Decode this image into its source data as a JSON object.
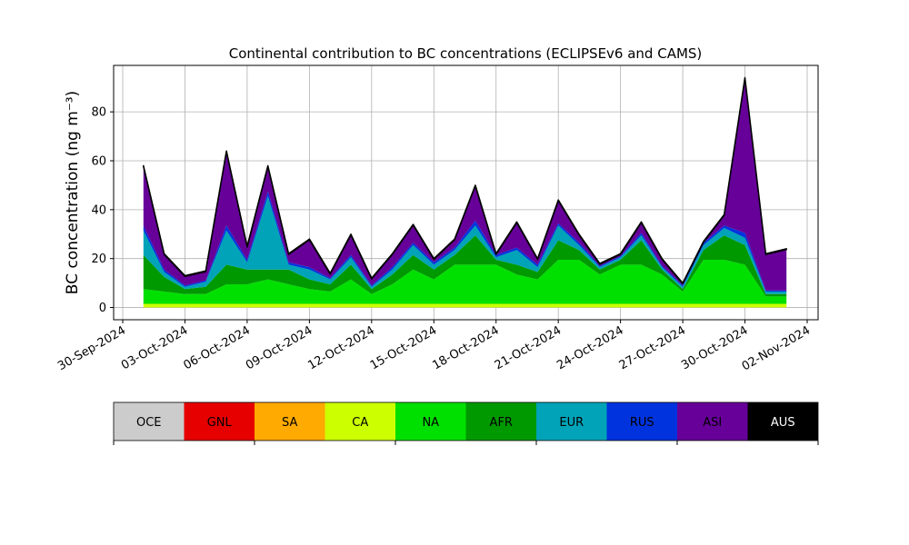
{
  "chart_data": {
    "type": "stacked_area",
    "title": "Continental contribution to BC concentrations (ECLIPSEv6 and CAMS)",
    "y_label": "BC concentration (ng m⁻³)",
    "x": [
      "2024-10-01",
      "2024-10-02",
      "2024-10-03",
      "2024-10-04",
      "2024-10-05",
      "2024-10-06",
      "2024-10-07",
      "2024-10-08",
      "2024-10-09",
      "2024-10-10",
      "2024-10-11",
      "2024-10-12",
      "2024-10-13",
      "2024-10-14",
      "2024-10-15",
      "2024-10-16",
      "2024-10-17",
      "2024-10-18",
      "2024-10-19",
      "2024-10-20",
      "2024-10-21",
      "2024-10-22",
      "2024-10-23",
      "2024-10-24",
      "2024-10-25",
      "2024-10-26",
      "2024-10-27",
      "2024-10-28",
      "2024-10-29",
      "2024-10-30",
      "2024-10-31",
      "2024-11-01"
    ],
    "series": [
      {
        "name": "OCE",
        "color": "#cccccc",
        "values": [
          0,
          0,
          0,
          0,
          0,
          0,
          0,
          0,
          0,
          0,
          0,
          0,
          0,
          0,
          0,
          0,
          0,
          0,
          0,
          0,
          0,
          0,
          0,
          0,
          0,
          0,
          0,
          0,
          0,
          0,
          0,
          0
        ]
      },
      {
        "name": "GNL",
        "color": "#e60000",
        "values": [
          0,
          0,
          0,
          0,
          0,
          0,
          0,
          0,
          0,
          0,
          0,
          0,
          0,
          0,
          0,
          0,
          0,
          0,
          0,
          0,
          0,
          0,
          0,
          0,
          0,
          0,
          0,
          0,
          0,
          0,
          0,
          0
        ]
      },
      {
        "name": "SA",
        "color": "#ffaa00",
        "values": [
          0,
          0,
          0,
          0,
          0,
          0,
          0,
          0,
          0,
          0,
          0,
          0,
          0,
          0,
          0,
          0,
          0,
          0,
          0,
          0,
          0,
          0,
          0,
          0,
          0,
          0,
          0,
          0,
          0,
          0,
          0,
          0
        ]
      },
      {
        "name": "CA",
        "color": "#ccff00",
        "values": [
          1.5,
          1.5,
          1.5,
          1.5,
          1.5,
          1.5,
          1.5,
          1.5,
          1.5,
          1.5,
          1.5,
          1.5,
          1.5,
          1.5,
          1.5,
          1.5,
          1.5,
          1.5,
          1.5,
          1.5,
          1.5,
          1.5,
          1.5,
          1.5,
          1.5,
          1.5,
          1.5,
          1.5,
          1.5,
          1.5,
          1.5,
          1.5
        ]
      },
      {
        "name": "NA",
        "color": "#00e000",
        "values": [
          6,
          5,
          4,
          4,
          8,
          8,
          10,
          8,
          6,
          5,
          10,
          4,
          8,
          14,
          10,
          16,
          16,
          16,
          12,
          10,
          18,
          18,
          12,
          16,
          16,
          12,
          5,
          18,
          18,
          16,
          3,
          3
        ]
      },
      {
        "name": "AFR",
        "color": "#009900",
        "values": [
          14,
          6,
          2,
          3,
          8,
          6,
          4,
          6,
          4,
          3,
          6,
          2,
          4,
          6,
          4,
          4,
          12,
          2,
          4,
          3,
          8,
          4,
          2,
          2,
          10,
          2,
          1,
          4,
          10,
          8,
          1,
          1
        ]
      },
      {
        "name": "EUR",
        "color": "#00a3b8",
        "values": [
          10,
          2,
          1,
          2,
          14,
          3,
          30,
          2,
          4,
          2,
          3,
          1,
          2,
          4,
          2,
          2,
          4,
          1,
          6,
          2,
          6,
          2,
          1,
          1,
          2,
          1,
          1,
          2,
          3,
          3,
          1,
          1
        ]
      },
      {
        "name": "RUS",
        "color": "#0033dd",
        "values": [
          2,
          1,
          0.5,
          0.5,
          2,
          1,
          2,
          1,
          1,
          0.5,
          1,
          0.5,
          1,
          1,
          1,
          1,
          2,
          1,
          1,
          1,
          1,
          1,
          0.5,
          0.5,
          1,
          0.5,
          0.5,
          1,
          1,
          2,
          0.5,
          0.5
        ]
      },
      {
        "name": "ASI",
        "color": "#660099",
        "values": [
          24.2,
          6.2,
          3.7,
          3.7,
          30.2,
          5.2,
          10.2,
          3.2,
          11.2,
          1.7,
          8.2,
          2.7,
          5.2,
          7.2,
          1.2,
          3.2,
          14.2,
          0.2,
          10.2,
          2.2,
          9.2,
          3.2,
          0.7,
          0.7,
          4.2,
          2.7,
          0.7,
          0.2,
          4.2,
          63.2,
          14.7,
          16.7
        ]
      },
      {
        "name": "AUS",
        "color": "#000000",
        "values": [
          0.3,
          0.3,
          0.3,
          0.3,
          0.3,
          0.3,
          0.3,
          0.3,
          0.3,
          0.3,
          0.3,
          0.3,
          0.3,
          0.3,
          0.3,
          0.3,
          0.3,
          0.3,
          0.3,
          0.3,
          0.3,
          0.3,
          0.3,
          0.3,
          0.3,
          0.3,
          0.3,
          0.3,
          0.3,
          0.3,
          0.3,
          0.3
        ]
      }
    ],
    "xlim": [
      "2024-09-30",
      "2024-11-02"
    ],
    "xticks": [
      {
        "value": "2024-09-30",
        "label": "30-Sep-2024"
      },
      {
        "value": "2024-10-03",
        "label": "03-Oct-2024"
      },
      {
        "value": "2024-10-06",
        "label": "06-Oct-2024"
      },
      {
        "value": "2024-10-09",
        "label": "09-Oct-2024"
      },
      {
        "value": "2024-10-12",
        "label": "12-Oct-2024"
      },
      {
        "value": "2024-10-15",
        "label": "15-Oct-2024"
      },
      {
        "value": "2024-10-18",
        "label": "18-Oct-2024"
      },
      {
        "value": "2024-10-21",
        "label": "21-Oct-2024"
      },
      {
        "value": "2024-10-24",
        "label": "24-Oct-2024"
      },
      {
        "value": "2024-10-27",
        "label": "27-Oct-2024"
      },
      {
        "value": "2024-10-30",
        "label": "30-Oct-2024"
      },
      {
        "value": "2024-11-02",
        "label": "02-Nov-2024"
      }
    ],
    "ylim": [
      -5,
      99
    ],
    "yticks": [
      0,
      20,
      40,
      60,
      80
    ],
    "grid": true
  }
}
